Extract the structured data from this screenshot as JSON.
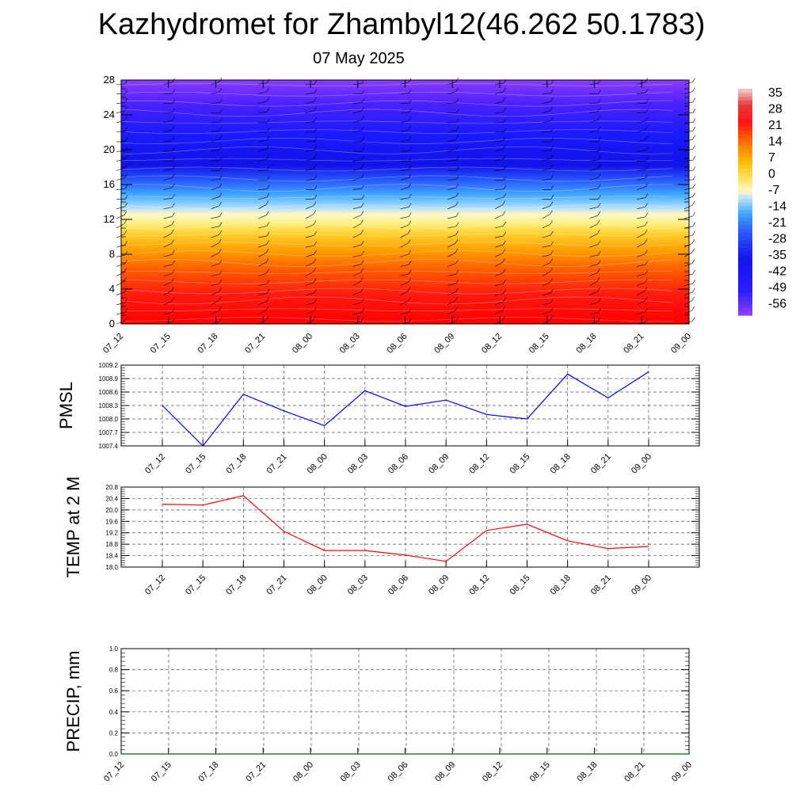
{
  "page": {
    "title": "Kazhydromet for Zhambyl12(46.262 50.1783)",
    "subtitle": "07 May 2025"
  },
  "chart_data": [
    {
      "type": "heatmap",
      "name": "temperature-cross-section",
      "title": "",
      "xlabel": "",
      "ylabel": "",
      "x_ticks": [
        "07_12",
        "07_15",
        "07_18",
        "07_21",
        "08_00",
        "08_03",
        "08_06",
        "08_09",
        "08_12",
        "08_15",
        "08_18",
        "08_21",
        "09_00"
      ],
      "y_ticks": [
        "0",
        "4",
        "8",
        "12",
        "16",
        "20",
        "24",
        "28"
      ],
      "ylim": [
        0,
        28
      ],
      "colorbar_labels": [
        "35",
        "28",
        "21",
        "14",
        "7",
        "0",
        "-7",
        "-14",
        "-21",
        "-28",
        "-35",
        "-42",
        "-49",
        "-56"
      ],
      "colorbar_range": [
        -63,
        42
      ],
      "wind_barbs": true,
      "colors": {
        "stops": [
          "#ff0000",
          "#ff2020",
          "#ff6a00",
          "#ffb000",
          "#ffe040",
          "#fff8b0",
          "#9fd9ff",
          "#3fa0ff",
          "#2a5cff",
          "#1010f0",
          "#2800ff",
          "#8a3cff"
        ]
      }
    },
    {
      "type": "line",
      "name": "pmsl",
      "ylabel": "PMSL",
      "x": [
        "07_12",
        "07_15",
        "07_18",
        "07_21",
        "08_00",
        "08_03",
        "08_06",
        "08_09",
        "08_12",
        "08_15",
        "08_18",
        "08_21",
        "09_00"
      ],
      "y_ticks": [
        "1007.4",
        "1007.7",
        "1008.0",
        "1008.3",
        "1008.6",
        "1008.9",
        "1009.2"
      ],
      "ylim": [
        1007.4,
        1009.2
      ],
      "series": [
        {
          "values": [
            1008.3,
            1007.4,
            1008.55,
            1008.18,
            1007.85,
            1008.63,
            1008.28,
            1008.42,
            1008.1,
            1008.0,
            1009.0,
            1008.47,
            1009.05
          ],
          "color": "#0000ff"
        }
      ],
      "grid": true
    },
    {
      "type": "line",
      "name": "temp-2m",
      "ylabel": "TEMP at 2 M",
      "x": [
        "07_12",
        "07_15",
        "07_18",
        "07_21",
        "08_00",
        "08_03",
        "08_06",
        "08_09",
        "08_12",
        "08_15",
        "08_18",
        "08_21",
        "09_00"
      ],
      "y_ticks": [
        "18.0",
        "18.4",
        "18.8",
        "19.2",
        "19.6",
        "20.0",
        "20.4",
        "20.8"
      ],
      "ylim": [
        18.0,
        20.8
      ],
      "series": [
        {
          "values": [
            20.2,
            20.17,
            20.5,
            19.25,
            18.58,
            18.58,
            18.42,
            18.2,
            19.28,
            19.5,
            18.92,
            18.65,
            18.72
          ],
          "color": "#ff0000"
        }
      ],
      "grid": true
    },
    {
      "type": "line",
      "name": "precip",
      "ylabel": "PRECIP, mm",
      "x": [
        "07_12",
        "07_15",
        "07_18",
        "07_21",
        "08_00",
        "08_03",
        "08_06",
        "08_09",
        "08_12",
        "08_15",
        "08_18",
        "08_21",
        "09_00"
      ],
      "y_ticks": [
        "0.0",
        "0.2",
        "0.4",
        "0.6",
        "0.8",
        "1.0"
      ],
      "ylim": [
        0.0,
        1.0
      ],
      "series": [
        {
          "values": [
            0,
            0,
            0,
            0,
            0,
            0,
            0,
            0,
            0,
            0,
            0,
            0,
            0
          ],
          "color": "#006400"
        }
      ],
      "grid": true
    }
  ]
}
